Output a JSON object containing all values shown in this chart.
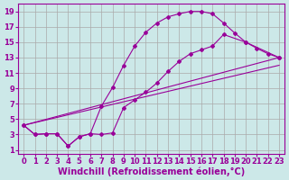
{
  "xlabel": "Windchill (Refroidissement éolien,°C)",
  "bg_color": "#cce8e8",
  "grid_color": "#aaaaaa",
  "line_color": "#990099",
  "xlim": [
    -0.5,
    23.5
  ],
  "ylim": [
    0.5,
    20
  ],
  "xticks": [
    0,
    1,
    2,
    3,
    4,
    5,
    6,
    7,
    8,
    9,
    10,
    11,
    12,
    13,
    14,
    15,
    16,
    17,
    18,
    19,
    20,
    21,
    22,
    23
  ],
  "yticks": [
    1,
    3,
    5,
    7,
    9,
    11,
    13,
    15,
    17,
    19
  ],
  "line1_x": [
    0,
    1,
    2,
    3,
    4,
    5,
    6,
    7,
    8,
    9,
    10,
    11,
    12,
    13,
    14,
    15,
    16,
    17,
    18,
    19,
    20,
    21,
    22,
    23
  ],
  "line1_y": [
    4.2,
    3.0,
    3.1,
    3.1,
    1.5,
    2.7,
    3.1,
    6.7,
    9.1,
    12.0,
    14.5,
    16.3,
    17.5,
    18.3,
    18.7,
    19.0,
    19.0,
    18.7,
    17.5,
    16.2,
    15.0,
    14.2,
    13.5,
    13.0
  ],
  "line2_x": [
    0,
    1,
    2,
    3,
    4,
    5,
    6,
    7,
    8,
    9,
    10,
    11,
    12,
    13,
    14,
    15,
    16,
    17,
    18,
    20,
    23
  ],
  "line2_y": [
    4.2,
    3.0,
    3.1,
    3.1,
    1.5,
    2.7,
    3.1,
    3.0,
    3.2,
    6.5,
    7.5,
    8.5,
    9.7,
    11.2,
    12.5,
    13.5,
    14.0,
    14.5,
    16.0,
    15.0,
    13.0
  ],
  "line3_x": [
    0,
    23
  ],
  "line3_y": [
    4.2,
    13.0
  ],
  "line4_x": [
    0,
    23
  ],
  "line4_y": [
    4.2,
    12.0
  ],
  "fontsize_label": 7,
  "fontsize_tick": 6,
  "marker": "D",
  "markersize": 2.0,
  "linewidth": 0.8
}
